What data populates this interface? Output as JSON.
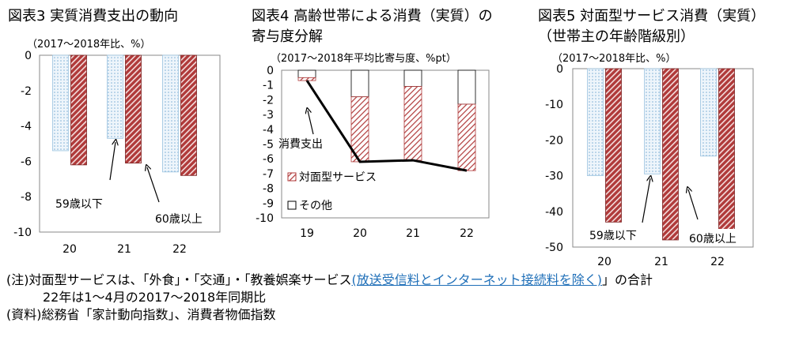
{
  "colors": {
    "light": "#cfe2f0",
    "dark": "#b03a3a",
    "line": "#000000",
    "frame": "#8a8a8a"
  },
  "charts": [
    {
      "title": "図表3 実質消費支出の動向",
      "unit": "（2017～2018年比、%）",
      "y_ticks": [
        "0",
        "-2",
        "-4",
        "-6",
        "-8",
        "-10"
      ],
      "x_ticks": [
        "20",
        "21",
        "22"
      ],
      "annotations": {
        "a": "59歳以下",
        "b": "60歳以上"
      }
    },
    {
      "title": "図表4 高齢世帯による消費（実質）の",
      "title2": "寄与度分解",
      "unit": "（2017～2018年平均比寄与度、%pt）",
      "y_ticks": [
        "0",
        "-1",
        "-2",
        "-3",
        "-4",
        "-5",
        "-6",
        "-7",
        "-8",
        "-9",
        "-10"
      ],
      "x_ticks": [
        "19",
        "20",
        "21",
        "22"
      ],
      "annotations": {
        "a": "消費支出"
      },
      "legend": [
        "対面型サービス",
        "その他"
      ]
    },
    {
      "title": "図表5 対面型サービス消費（実質）",
      "title2": "（世帯主の年齢階級別）",
      "unit": "（2017～2018年比、%）",
      "y_ticks": [
        "0",
        "-10",
        "-20",
        "-30",
        "-40",
        "-50"
      ],
      "x_ticks": [
        "20",
        "21",
        "22"
      ],
      "annotations": {
        "a": "59歳以下",
        "b": "60歳以上"
      }
    }
  ],
  "chart_data": [
    {
      "type": "bar",
      "categories": [
        "20",
        "21",
        "22"
      ],
      "ylim": [
        -10,
        0
      ],
      "series": [
        {
          "name": "59歳以下",
          "values": [
            -5.4,
            -4.7,
            -6.6
          ]
        },
        {
          "name": "60歳以上",
          "values": [
            -6.2,
            -6.1,
            -6.8
          ]
        }
      ]
    },
    {
      "type": "bar",
      "categories": [
        "19",
        "20",
        "21",
        "22"
      ],
      "ylim": [
        -10,
        0
      ],
      "stacked": true,
      "series": [
        {
          "name": "その他",
          "values": [
            -0.5,
            -1.8,
            -1.1,
            -2.3
          ]
        },
        {
          "name": "対面型サービス",
          "values": [
            -0.2,
            -4.4,
            -5.0,
            -4.5
          ]
        },
        {
          "name": "消費支出",
          "type": "line",
          "values": [
            -0.7,
            -6.2,
            -6.1,
            -6.8
          ]
        }
      ]
    },
    {
      "type": "bar",
      "categories": [
        "20",
        "21",
        "22"
      ],
      "ylim": [
        -50,
        0
      ],
      "series": [
        {
          "name": "59歳以下",
          "values": [
            -30,
            -29.5,
            -24.5
          ]
        },
        {
          "name": "60歳以上",
          "values": [
            -43,
            -48,
            -45
          ]
        }
      ]
    }
  ],
  "notes": {
    "line1_a": "(注)対面型サービスは、「外食」・「交通」・「教養娯楽サービス",
    "line1_link": "(放送受信料とインターネット接続料を除く)",
    "line1_b": "」の合計",
    "line2": "22年は1～4月の2017～2018年同期比",
    "line3": "(資料)総務省「家計動向指数」、消費者物価指数"
  }
}
